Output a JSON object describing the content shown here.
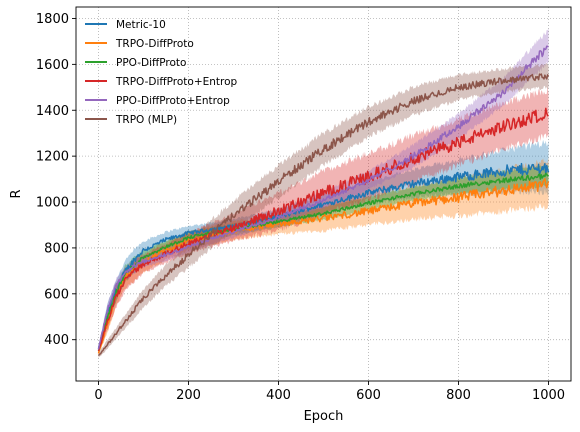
{
  "chart_data": {
    "type": "line",
    "title": "",
    "xlabel": "Epoch",
    "ylabel": "R",
    "xlim": [
      -50,
      1050
    ],
    "ylim": [
      220,
      1850
    ],
    "xticks": [
      0,
      200,
      400,
      600,
      800,
      1000
    ],
    "yticks": [
      400,
      600,
      800,
      1000,
      1200,
      1400,
      1600,
      1800
    ],
    "grid": true,
    "legend_position": "top-left",
    "series": [
      {
        "name": "Metric-10",
        "color": "#1f77b4",
        "x": [
          0,
          20,
          40,
          60,
          80,
          100,
          150,
          200,
          250,
          300,
          400,
          500,
          600,
          700,
          800,
          900,
          1000
        ],
        "y": [
          360,
          520,
          620,
          700,
          750,
          790,
          835,
          865,
          880,
          895,
          935,
          990,
          1040,
          1080,
          1110,
          1135,
          1150
        ],
        "band": [
          10,
          40,
          45,
          45,
          45,
          40,
          35,
          30,
          30,
          30,
          35,
          40,
          50,
          60,
          75,
          90,
          110
        ]
      },
      {
        "name": "TRPO-DiffProto",
        "color": "#ff7f0e",
        "x": [
          0,
          20,
          40,
          60,
          80,
          100,
          150,
          200,
          250,
          300,
          400,
          500,
          600,
          700,
          800,
          900,
          1000
        ],
        "y": [
          340,
          470,
          600,
          670,
          705,
          735,
          790,
          830,
          855,
          875,
          905,
          930,
          960,
          995,
          1020,
          1050,
          1080
        ],
        "band": [
          10,
          40,
          45,
          45,
          45,
          40,
          40,
          40,
          40,
          40,
          45,
          55,
          60,
          70,
          80,
          90,
          100
        ]
      },
      {
        "name": "PPO-DiffProto",
        "color": "#2ca02c",
        "x": [
          0,
          20,
          40,
          60,
          80,
          100,
          150,
          200,
          250,
          300,
          400,
          500,
          600,
          700,
          800,
          900,
          1000
        ],
        "y": [
          350,
          500,
          610,
          690,
          725,
          760,
          805,
          845,
          865,
          880,
          915,
          950,
          995,
          1035,
          1070,
          1095,
          1115
        ],
        "band": [
          10,
          30,
          35,
          35,
          35,
          30,
          25,
          25,
          25,
          25,
          25,
          28,
          30,
          30,
          35,
          40,
          45
        ]
      },
      {
        "name": "TRPO-DiffProto+Entrop",
        "color": "#d62728",
        "x": [
          0,
          20,
          40,
          60,
          80,
          100,
          150,
          200,
          250,
          300,
          400,
          500,
          600,
          700,
          800,
          900,
          1000
        ],
        "y": [
          350,
          480,
          590,
          660,
          700,
          730,
          775,
          820,
          855,
          890,
          960,
          1040,
          1110,
          1190,
          1260,
          1330,
          1390
        ],
        "band": [
          10,
          40,
          45,
          45,
          45,
          40,
          40,
          45,
          50,
          60,
          80,
          95,
          100,
          100,
          100,
          100,
          100
        ]
      },
      {
        "name": "PPO-DiffProto+Entrop",
        "color": "#9467bd",
        "x": [
          0,
          20,
          40,
          60,
          80,
          100,
          150,
          200,
          250,
          300,
          400,
          500,
          600,
          700,
          800,
          900,
          1000
        ],
        "y": [
          360,
          530,
          640,
          690,
          720,
          740,
          770,
          805,
          840,
          870,
          935,
          1010,
          1095,
          1200,
          1330,
          1480,
          1680
        ],
        "band": [
          10,
          30,
          30,
          30,
          30,
          25,
          25,
          25,
          25,
          25,
          30,
          35,
          40,
          50,
          55,
          60,
          70
        ]
      },
      {
        "name": "TRPO (MLP)",
        "color": "#8c564b",
        "x": [
          0,
          20,
          40,
          60,
          80,
          100,
          150,
          200,
          250,
          300,
          400,
          500,
          600,
          700,
          800,
          900,
          1000
        ],
        "y": [
          330,
          380,
          430,
          480,
          530,
          580,
          680,
          770,
          860,
          940,
          1090,
          1230,
          1350,
          1440,
          1500,
          1530,
          1550
        ],
        "band": [
          10,
          20,
          25,
          30,
          35,
          40,
          45,
          55,
          60,
          65,
          70,
          70,
          65,
          60,
          55,
          50,
          50
        ]
      }
    ]
  }
}
